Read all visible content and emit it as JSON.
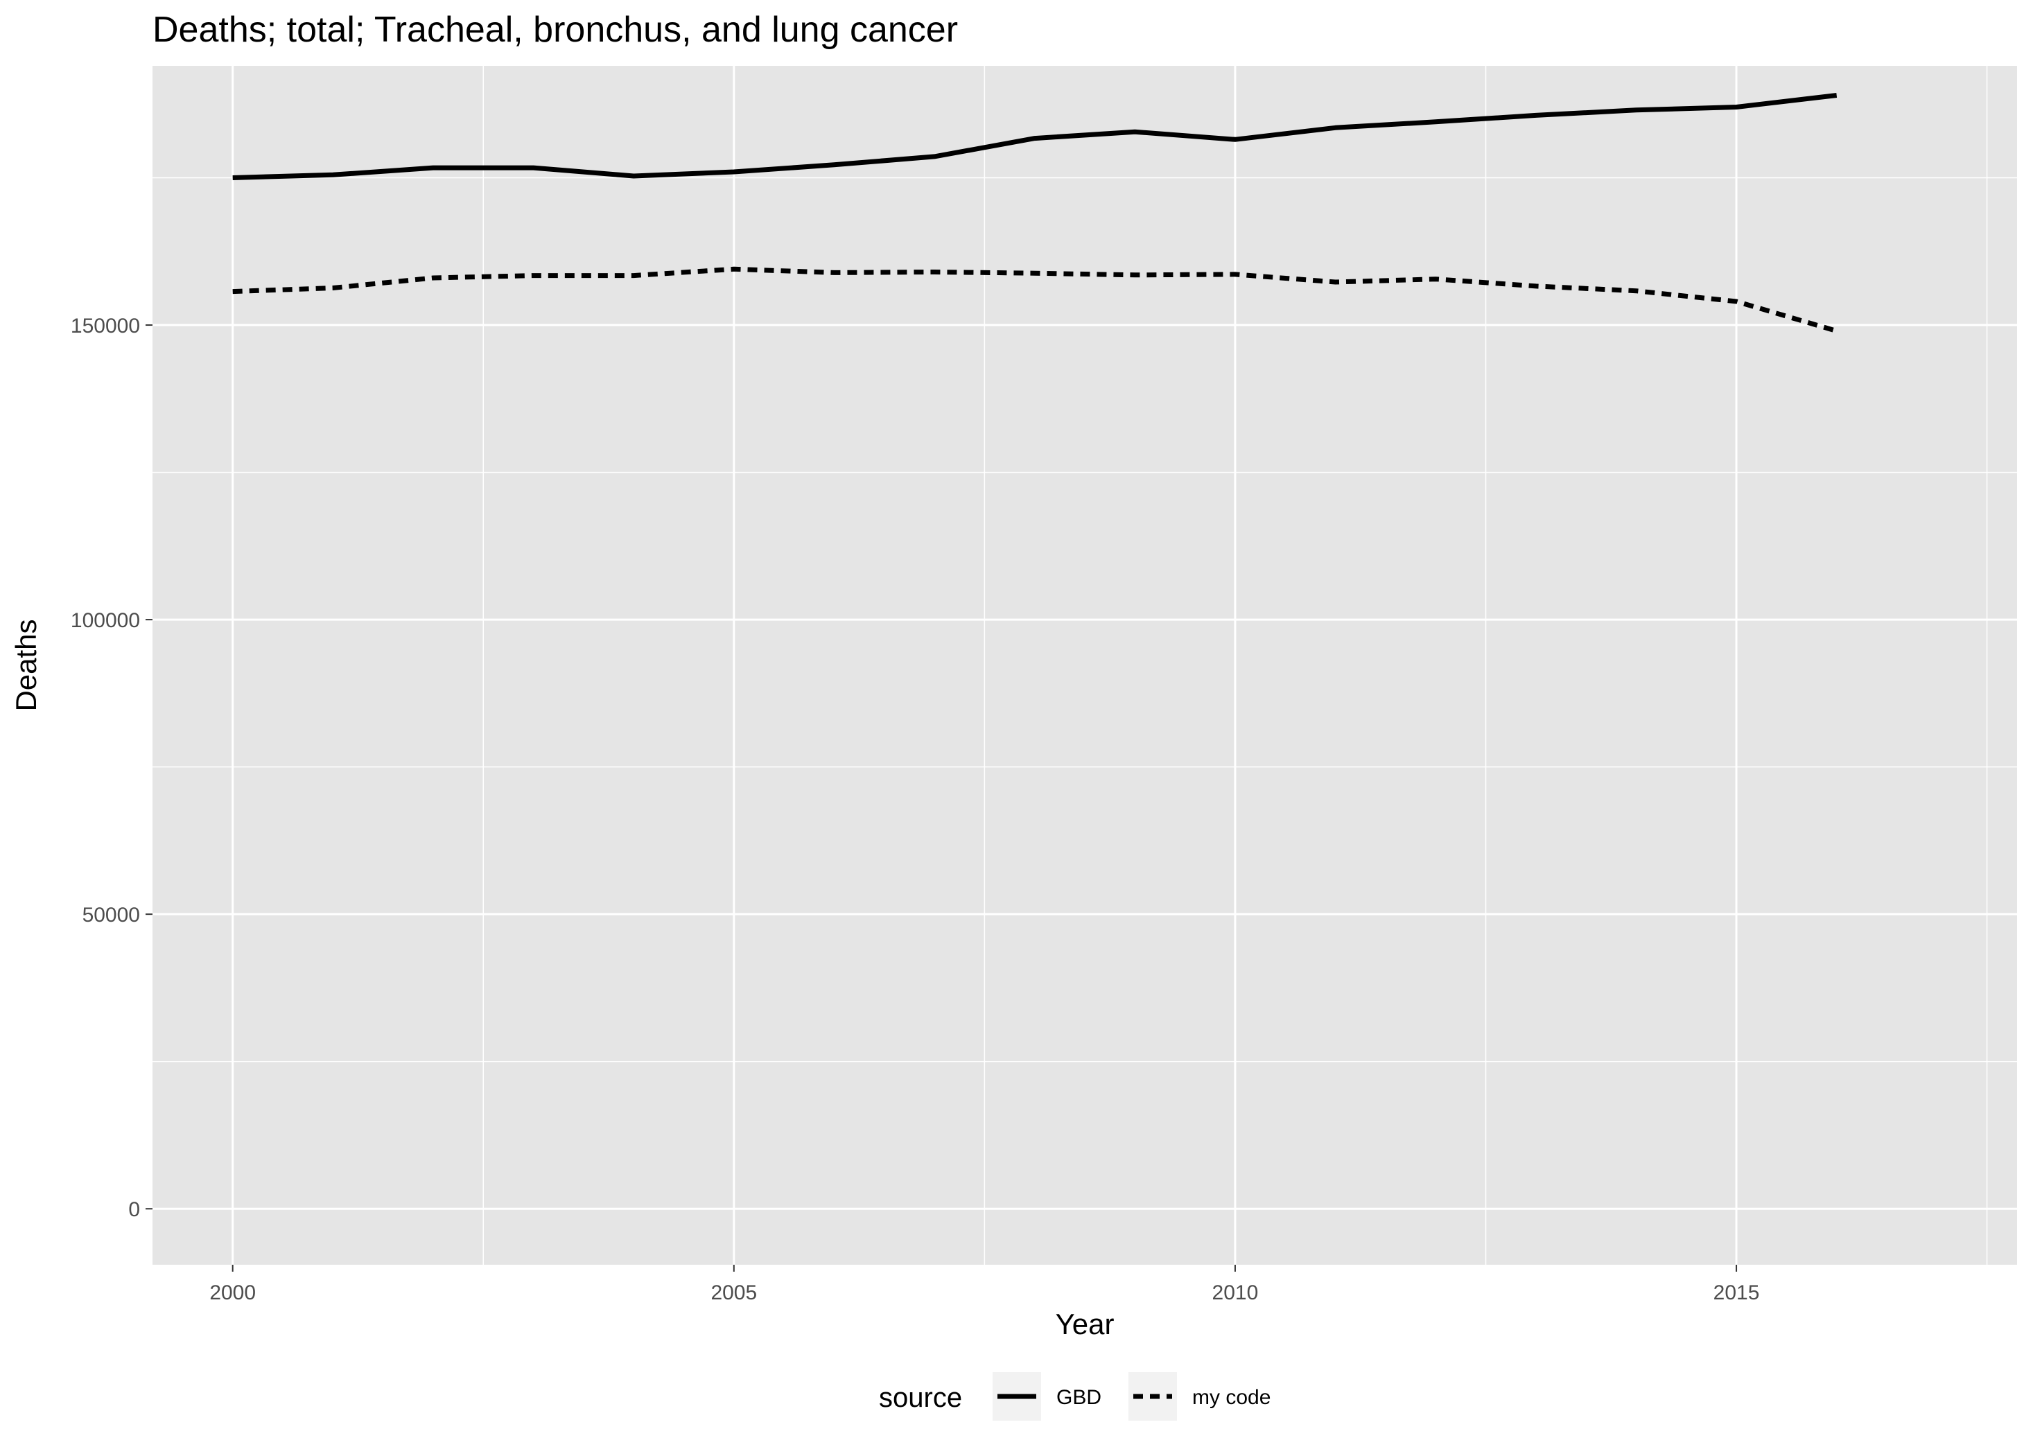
{
  "chart_data": {
    "type": "line",
    "title": "Deaths; total; Tracheal, bronchus, and lung cancer",
    "xlabel": "Year",
    "ylabel": "Deaths",
    "xlim": [
      1999.2,
      2017.8
    ],
    "ylim": [
      -9500,
      194000
    ],
    "x_ticks": [
      "2000",
      "2005",
      "2010",
      "2015"
    ],
    "y_ticks": [
      "0",
      "50000",
      "100000",
      "150000"
    ],
    "grid": true,
    "legend": {
      "position": "bottom",
      "title": "source",
      "entries": [
        "GBD",
        "my code"
      ]
    },
    "x": [
      2000,
      2001,
      2002,
      2003,
      2004,
      2005,
      2006,
      2007,
      2008,
      2009,
      2010,
      2011,
      2012,
      2013,
      2014,
      2015,
      2016
    ],
    "series": [
      {
        "name": "GBD",
        "linetype": "solid",
        "color": "#000000",
        "values": [
          175000,
          175500,
          176700,
          176700,
          175300,
          176000,
          177200,
          178600,
          181700,
          182800,
          181500,
          183500,
          184500,
          185600,
          186500,
          187000,
          189000
        ]
      },
      {
        "name": "my code",
        "linetype": "dashed",
        "color": "#000000",
        "values": [
          155700,
          156300,
          158000,
          158400,
          158400,
          159500,
          158900,
          159000,
          158800,
          158500,
          158600,
          157300,
          157800,
          156600,
          155800,
          154000,
          149000
        ]
      }
    ],
    "colors": {
      "panel_bg": "#e5e5e5",
      "grid": "#ffffff",
      "legend_key_bg": "#f2f2f2"
    }
  }
}
